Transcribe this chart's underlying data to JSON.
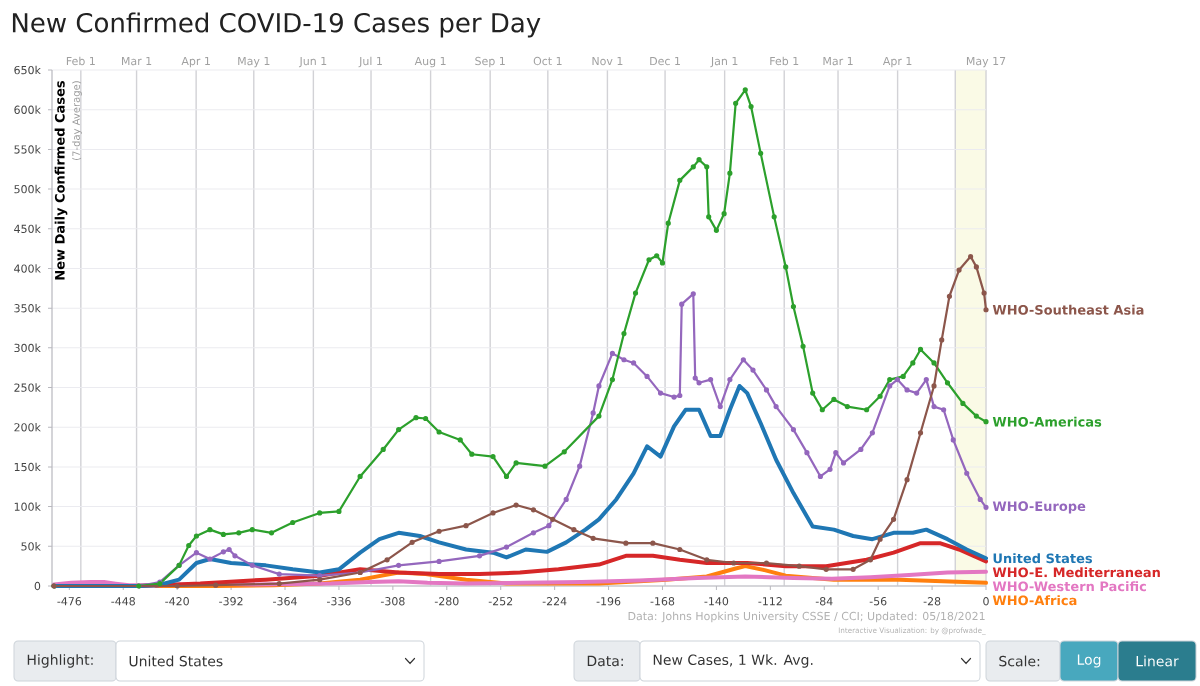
{
  "chart_data": {
    "type": "line",
    "title": "New Confirmed COVID-19 Cases per Day",
    "ylabel": "New Daily Confirmed Cases",
    "annotations": [
      "(7-day Average)",
      "Data: Johns Hopkins University CSSE / CCI; Updated: 05/18/2021",
      "Interactive Visualization: by @profwade_",
      "Highlight:",
      "United States",
      "Data:",
      "New Cases, 1 Wk. Avg.",
      "Scale:",
      "Log",
      "Linear"
    ],
    "xlim": [
      -485,
      0
    ],
    "xticks": [
      -476,
      -448,
      -420,
      -392,
      -364,
      -336,
      -308,
      -280,
      -252,
      -224,
      -196,
      -168,
      -140,
      -112,
      -84,
      -56,
      -28,
      0
    ],
    "x2lim": [
      "2020-01-17",
      "2021-05-17"
    ],
    "x2ticks": [
      {
        "value": "2020-02-01",
        "label": "Feb 1"
      },
      {
        "value": "2020-03-01",
        "label": "Mar 1"
      },
      {
        "value": "2020-04-01",
        "label": "Apr 1"
      },
      {
        "value": "2020-05-01",
        "label": "May 1"
      },
      {
        "value": "2020-06-01",
        "label": "Jun 1"
      },
      {
        "value": "2020-07-01",
        "label": "Jul 1"
      },
      {
        "value": "2020-08-01",
        "label": "Aug 1"
      },
      {
        "value": "2020-09-01",
        "label": "Sep 1"
      },
      {
        "value": "2020-10-01",
        "label": "Oct 1"
      },
      {
        "value": "2020-11-01",
        "label": "Nov 1"
      },
      {
        "value": "2020-12-01",
        "label": "Dec 1"
      },
      {
        "value": "2021-01-01",
        "label": "Jan 1"
      },
      {
        "value": "2021-02-01",
        "label": "Feb 1"
      },
      {
        "value": "2021-03-01",
        "label": "Mar 1"
      },
      {
        "value": "2021-04-01",
        "label": "Apr 1"
      },
      {
        "value": "2021-05-01",
        "label": null
      },
      {
        "value": "2021-05-17",
        "label": "May 17"
      }
    ],
    "ylim": [
      0,
      650000
    ],
    "yticks": [
      0,
      {
        "value": 50000,
        "label": "50k"
      },
      {
        "value": 100000,
        "label": "100k"
      },
      {
        "value": 150000,
        "label": "150k"
      },
      {
        "value": 200000,
        "label": "200k"
      },
      {
        "value": 250000,
        "label": "250k"
      },
      {
        "value": 300000,
        "label": "300k"
      },
      {
        "value": 350000,
        "label": "350k"
      },
      {
        "value": 400000,
        "label": "400k"
      },
      {
        "value": 450000,
        "label": "450k"
      },
      {
        "value": 500000,
        "label": "500k"
      },
      {
        "value": 550000,
        "label": "550k"
      },
      {
        "value": 600000,
        "label": "600k"
      },
      {
        "value": 650000,
        "label": "650k"
      }
    ],
    "grid": true,
    "bands": [
      {
        "axis": "x",
        "from": -16,
        "to": 0,
        "color": "#fafae6"
      }
    ],
    "series": [
      {
        "name": "WHO-Southeast Asia",
        "color": "#8c564b",
        "marker": "circle",
        "x": [
          -484,
          -420,
          -400,
          -367,
          -346,
          -325,
          -311,
          -298,
          -284,
          -270,
          -256,
          -244,
          -235,
          -225,
          -214,
          -204,
          -187,
          -173,
          -159,
          -145,
          -131,
          -114,
          -97,
          -83,
          -69,
          -60,
          -55,
          -48,
          -41,
          -34,
          -27,
          -23,
          -19,
          -14,
          -8,
          -5,
          -1,
          0
        ],
        "values": [
          0,
          0,
          1000,
          3000,
          8000,
          17000,
          33000,
          55000,
          69000,
          76000,
          92000,
          102000,
          96000,
          84000,
          71000,
          60000,
          54000,
          54000,
          46000,
          33000,
          29000,
          29000,
          25000,
          21000,
          21000,
          33000,
          59000,
          84000,
          134000,
          193000,
          252000,
          310000,
          365000,
          398000,
          415000,
          402000,
          369000,
          348000
        ]
      },
      {
        "name": "WHO-Americas",
        "color": "#2ca02c",
        "marker": "circle",
        "x": [
          -484,
          -440,
          -429,
          -419,
          -414,
          -410,
          -403,
          -396,
          -388,
          -381,
          -371,
          -360,
          -346,
          -336,
          -325,
          -313,
          -305,
          -296,
          -291,
          -284,
          -273,
          -267,
          -256,
          -249,
          -244,
          -229,
          -219,
          -201,
          -194,
          -188,
          -182,
          -175,
          -171,
          -168,
          -165,
          -159,
          -152,
          -149,
          -145,
          -144,
          -140,
          -136,
          -133,
          -130,
          -125,
          -122,
          -117,
          -110,
          -104,
          -100,
          -95,
          -90,
          -85,
          -79,
          -72,
          -62,
          -55,
          -50,
          -43,
          -38,
          -34,
          -27,
          -20,
          -12,
          -5,
          0
        ],
        "values": [
          0,
          0,
          3000,
          26000,
          51000,
          63000,
          71000,
          65000,
          67000,
          71000,
          67000,
          80000,
          92000,
          94000,
          138000,
          172000,
          197000,
          212000,
          211000,
          194000,
          184000,
          166000,
          163000,
          138000,
          155000,
          151000,
          169000,
          214000,
          260000,
          318000,
          369000,
          411000,
          416000,
          407000,
          457000,
          511000,
          528000,
          537000,
          528000,
          465000,
          448000,
          469000,
          520000,
          608000,
          625000,
          604000,
          545000,
          465000,
          402000,
          352000,
          302000,
          243000,
          222000,
          235000,
          226000,
          222000,
          239000,
          260000,
          264000,
          281000,
          298000,
          281000,
          256000,
          230000,
          214000,
          207000
        ]
      },
      {
        "name": "WHO-Europe",
        "color": "#9467bd",
        "marker": "circle",
        "x": [
          -484,
          -440,
          -429,
          -419,
          -410,
          -403,
          -396,
          -393,
          -390,
          -381,
          -367,
          -346,
          -325,
          -305,
          -284,
          -263,
          -249,
          -235,
          -227,
          -218,
          -211,
          -204,
          -201,
          -194,
          -188,
          -183,
          -176,
          -169,
          -162,
          -159,
          -158,
          -152,
          -151,
          -149,
          -143,
          -138,
          -133,
          -126,
          -121,
          -114,
          -109,
          -100,
          -93,
          -86,
          -81,
          -78,
          -74,
          -65,
          -59,
          -50,
          -46,
          -41,
          -36,
          -31,
          -27,
          -22,
          -17,
          -10,
          -3,
          0
        ],
        "values": [
          0,
          0,
          5000,
          26000,
          42000,
          34000,
          43000,
          46000,
          38000,
          26000,
          15000,
          13000,
          17000,
          26000,
          31000,
          38000,
          49000,
          67000,
          76000,
          109000,
          151000,
          218000,
          252000,
          293000,
          285000,
          281000,
          264000,
          243000,
          238000,
          240000,
          355000,
          368000,
          262000,
          256000,
          260000,
          226000,
          260000,
          285000,
          272000,
          247000,
          226000,
          197000,
          168000,
          138000,
          147000,
          168000,
          155000,
          172000,
          193000,
          252000,
          260000,
          247000,
          243000,
          260000,
          226000,
          222000,
          184000,
          142000,
          109000,
          99000
        ]
      },
      {
        "name": "United States",
        "color": "#1f77b4",
        "marker": "none",
        "x": [
          -484,
          -440,
          -430,
          -419,
          -410,
          -403,
          -392,
          -374,
          -360,
          -346,
          -336,
          -325,
          -315,
          -305,
          -294,
          -284,
          -270,
          -256,
          -249,
          -239,
          -228,
          -218,
          -208,
          -201,
          -192,
          -183,
          -176,
          -169,
          -162,
          -156,
          -149,
          -143,
          -138,
          -133,
          -128,
          -124,
          -117,
          -109,
          -100,
          -90,
          -79,
          -69,
          -59,
          -48,
          -38,
          -31,
          -20,
          -10,
          0
        ],
        "values": [
          0,
          0,
          1000,
          8000,
          29000,
          34000,
          29000,
          26000,
          21000,
          17000,
          21000,
          42000,
          59000,
          67000,
          63000,
          55000,
          46000,
          42000,
          36000,
          46000,
          43000,
          55000,
          71000,
          84000,
          109000,
          142000,
          176000,
          163000,
          201000,
          222000,
          222000,
          189000,
          189000,
          222000,
          252000,
          243000,
          205000,
          159000,
          117000,
          75000,
          71000,
          63000,
          59000,
          67000,
          67000,
          71000,
          59000,
          46000,
          35000
        ]
      },
      {
        "name": "WHO-E. Mediterranean",
        "color": "#d62728",
        "marker": "none",
        "x": [
          -484,
          -440,
          -430,
          -408,
          -374,
          -346,
          -325,
          -305,
          -284,
          -263,
          -242,
          -222,
          -201,
          -187,
          -173,
          -159,
          -145,
          -124,
          -104,
          -83,
          -62,
          -48,
          -34,
          -24,
          -14,
          0
        ],
        "values": [
          0,
          0,
          1000,
          3000,
          8000,
          13000,
          21000,
          17000,
          15000,
          15000,
          17000,
          21000,
          27000,
          38000,
          38000,
          33000,
          29000,
          29000,
          25000,
          25000,
          33000,
          42000,
          54000,
          54000,
          46000,
          31000
        ]
      },
      {
        "name": "WHO-Western Pacific",
        "color": "#e377c2",
        "marker": "none",
        "x": [
          -484,
          -475,
          -465,
          -458,
          -452,
          -445,
          -430,
          -400,
          -380,
          -340,
          -320,
          -305,
          -290,
          -270,
          -240,
          -210,
          -180,
          -150,
          -125,
          -100,
          -80,
          -60,
          -40,
          -20,
          0
        ],
        "values": [
          2000,
          4000,
          5000,
          5000,
          3000,
          1000,
          1000,
          3000,
          2000,
          3000,
          5000,
          6000,
          4000,
          3000,
          4000,
          5000,
          7000,
          10000,
          12000,
          10000,
          9000,
          11000,
          14000,
          17000,
          18000
        ]
      },
      {
        "name": "WHO-Africa",
        "color": "#ff7f0e",
        "marker": "none",
        "x": [
          -431,
          -400,
          -370,
          -346,
          -325,
          -305,
          -291,
          -270,
          -249,
          -220,
          -201,
          -166,
          -145,
          -130,
          -125,
          -115,
          -104,
          -79,
          -45,
          0
        ],
        "values": [
          0,
          0,
          1000,
          3000,
          8000,
          17000,
          15000,
          8000,
          3000,
          3000,
          3000,
          8000,
          12000,
          22000,
          25000,
          20000,
          13000,
          8000,
          8000,
          4000
        ]
      }
    ]
  }
}
